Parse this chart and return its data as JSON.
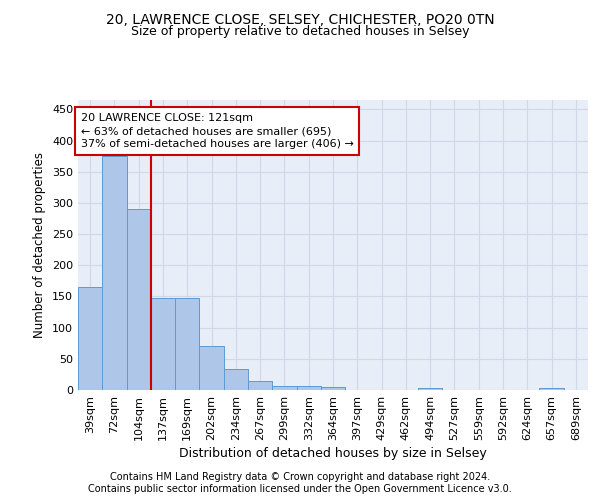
{
  "title": "20, LAWRENCE CLOSE, SELSEY, CHICHESTER, PO20 0TN",
  "subtitle": "Size of property relative to detached houses in Selsey",
  "xlabel": "Distribution of detached houses by size in Selsey",
  "ylabel": "Number of detached properties",
  "footer_line1": "Contains HM Land Registry data © Crown copyright and database right 2024.",
  "footer_line2": "Contains public sector information licensed under the Open Government Licence v3.0.",
  "categories": [
    "39sqm",
    "72sqm",
    "104sqm",
    "137sqm",
    "169sqm",
    "202sqm",
    "234sqm",
    "267sqm",
    "299sqm",
    "332sqm",
    "364sqm",
    "397sqm",
    "429sqm",
    "462sqm",
    "494sqm",
    "527sqm",
    "559sqm",
    "592sqm",
    "624sqm",
    "657sqm",
    "689sqm"
  ],
  "values": [
    165,
    375,
    290,
    148,
    148,
    70,
    33,
    14,
    7,
    7,
    5,
    0,
    0,
    0,
    4,
    0,
    0,
    0,
    0,
    4,
    0
  ],
  "bar_color": "#aec6e8",
  "bar_edge_color": "#5b9bd5",
  "grid_color": "#d0d8e8",
  "background_color": "#e8eef8",
  "annotation_text": "20 LAWRENCE CLOSE: 121sqm\n← 63% of detached houses are smaller (695)\n37% of semi-detached houses are larger (406) →",
  "vline_x": 2.5,
  "vline_color": "#cc0000",
  "annotation_box_edge_color": "#cc0000",
  "ylim": [
    0,
    465
  ],
  "yticks": [
    0,
    50,
    100,
    150,
    200,
    250,
    300,
    350,
    400,
    450
  ],
  "title_fontsize": 10,
  "subtitle_fontsize": 9,
  "xlabel_fontsize": 9,
  "ylabel_fontsize": 8.5,
  "tick_fontsize": 8,
  "annotation_fontsize": 8,
  "footer_fontsize": 7
}
